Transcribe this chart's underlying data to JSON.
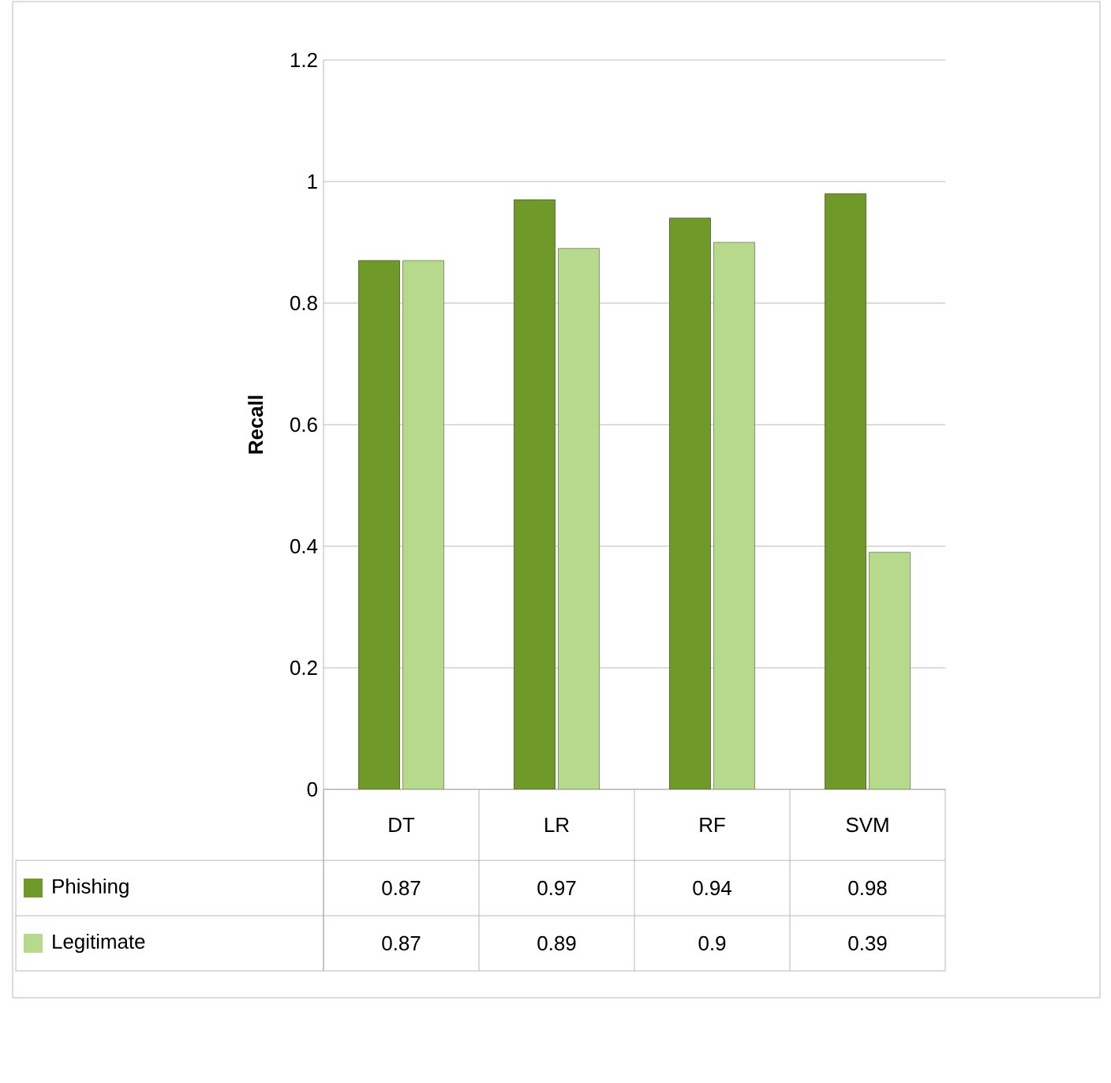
{
  "chart_data": {
    "type": "bar",
    "ylabel": "Recall",
    "categories": [
      "DT",
      "LR",
      "RF",
      "SVM"
    ],
    "series": [
      {
        "name": "Phishing",
        "color": "#6f9a2a",
        "values": [
          0.87,
          0.97,
          0.94,
          0.98
        ]
      },
      {
        "name": "Legitimate",
        "color": "#b7d98c",
        "values": [
          0.87,
          0.89,
          0.9,
          0.39
        ]
      }
    ],
    "ylim": [
      0,
      1.2
    ],
    "yticks": [
      0,
      0.2,
      0.4,
      0.6,
      0.8,
      1,
      1.2
    ],
    "grid": "y",
    "data_labels": true,
    "legend": "bottom left"
  }
}
